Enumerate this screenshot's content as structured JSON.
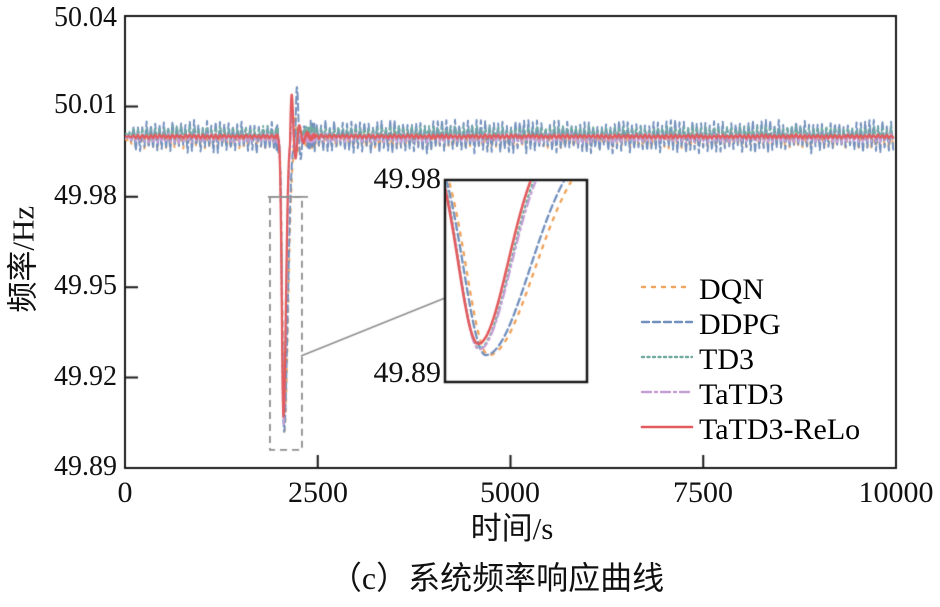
{
  "figure": {
    "caption": "（c）系统频率响应曲线",
    "background_color": "#ffffff",
    "frame_color": "#1a1a1a",
    "annotation_gray": "#909090"
  },
  "chart_data": {
    "type": "line",
    "title": "",
    "xlabel": "时间/s",
    "ylabel": "频率/Hz",
    "xlim": [
      0,
      10000
    ],
    "ylim": [
      49.89,
      50.04
    ],
    "xticks": [
      "0",
      "2500",
      "5000",
      "7500",
      "10000"
    ],
    "xtick_values": [
      0,
      2500,
      5000,
      7500,
      10000
    ],
    "yticks": [
      "50.04",
      "50.01",
      "49.98",
      "49.95",
      "49.92",
      "49.89"
    ],
    "ytick_values": [
      50.04,
      50.01,
      49.98,
      49.95,
      49.92,
      49.89
    ],
    "grid": false,
    "legend_position": "inside-right",
    "nominal_frequency_hz": 50.0,
    "disturbance_time_s": 2000,
    "series": [
      {
        "name": "DQN",
        "color": "#F0A45D",
        "line_style": "dotted",
        "dash": [
          3,
          7
        ],
        "line_width": 2.0,
        "baseline_hz": 49.999,
        "noise_amplitude_hz": 0.003,
        "dip": {
          "t_center_s": 2066,
          "width_left_s": 33,
          "width_right_s": 69,
          "depth_hz": 0.097,
          "f_min_hz": 49.902
        },
        "oscillation": {
          "t_start_s": 2185,
          "amplitude_hz": 0.014,
          "decay_tau_s": 60,
          "period_s": 90,
          "f_overshoot_hz": 50.01
        },
        "noise_resume_s": 2300,
        "seed": 7
      },
      {
        "name": "DDPG",
        "color": "#7290BD",
        "line_style": "dashed",
        "dash": [
          7,
          4
        ],
        "line_width": 1.9,
        "baseline_hz": 50.0,
        "noise_amplitude_hz": 0.0056,
        "dip": {
          "t_center_s": 2063,
          "width_left_s": 33,
          "width_right_s": 66,
          "depth_hz": 0.098,
          "f_min_hz": 49.902
        },
        "oscillation": {
          "t_start_s": 2210,
          "amplitude_hz": 0.024,
          "decay_tau_s": 60,
          "period_s": 95,
          "f_overshoot_hz": 50.016
        },
        "noise_resume_s": 2330,
        "seed": 11
      },
      {
        "name": "TD3",
        "color": "#72ABA0",
        "line_style": "densely-dotted",
        "dash": [
          2,
          3.5
        ],
        "line_width": 1.8,
        "baseline_hz": 50.001,
        "noise_amplitude_hz": 0.0026,
        "dip": {
          "t_center_s": 2056,
          "width_left_s": 30,
          "width_right_s": 47,
          "depth_hz": 0.096,
          "f_min_hz": 49.905
        },
        "oscillation": {
          "t_start_s": 2145,
          "amplitude_hz": 0.013,
          "decay_tau_s": 55,
          "period_s": 85,
          "f_overshoot_hz": 50.01
        },
        "noise_resume_s": 2270,
        "seed": 23
      },
      {
        "name": "TaTD3",
        "color": "#C69FD7",
        "line_style": "dash-dot",
        "dash": [
          9,
          4,
          2,
          4
        ],
        "line_width": 1.8,
        "baseline_hz": 49.9995,
        "noise_amplitude_hz": 0.0016,
        "dip": {
          "t_center_s": 2056,
          "width_left_s": 30,
          "width_right_s": 48,
          "depth_hz": 0.095,
          "f_min_hz": 49.9045
        },
        "oscillation": {
          "t_start_s": 2145,
          "amplitude_hz": 0.011,
          "decay_tau_s": 55,
          "period_s": 85,
          "f_overshoot_hz": 50.008
        },
        "noise_resume_s": 2270,
        "seed": 31
      },
      {
        "name": "TaTD3-ReLo",
        "color": "#E25B5E",
        "line_style": "solid",
        "dash": [],
        "line_width": 2.2,
        "baseline_hz": 50.0,
        "noise_amplitude_hz": 0.0007,
        "dip": {
          "t_center_s": 2055,
          "width_left_s": 30,
          "width_right_s": 45,
          "depth_hz": 0.093,
          "f_min_hz": 49.907
        },
        "oscillation": {
          "t_start_s": 2140,
          "amplitude_hz": 0.0195,
          "decay_tau_s": 75,
          "period_s": 100,
          "f_overshoot_hz": 50.014
        },
        "noise_resume_s": 2260,
        "seed": 47
      }
    ],
    "inset": {
      "tick_label_top": "49.98",
      "tick_label_bottom": "49.89",
      "x_range_s": [
        2020,
        2170
      ],
      "y_range_hz": [
        49.89,
        49.98
      ]
    },
    "zoom_region_box": {
      "t_range_s": [
        1880,
        2295
      ],
      "f_range_hz": [
        49.896,
        49.98
      ]
    }
  },
  "legend": {
    "items": [
      "DQN",
      "DDPG",
      "TD3",
      "TaTD3",
      "TaTD3-ReLo"
    ]
  }
}
